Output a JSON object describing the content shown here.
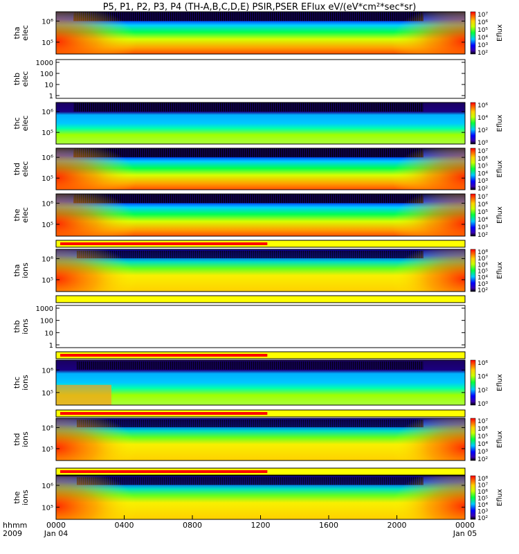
{
  "chart_data": {
    "type": "heatmap",
    "title": "P5, P1, P2, P3, P4 (TH-A,B,C,D,E) PSIR,PSER EFlux eV/(eV*cm²*sec*sr)",
    "colorbar_label": "Eflux",
    "x_axis": {
      "corner_label_1": "hhmm",
      "corner_label_2": "2009",
      "tick_labels": [
        "0000",
        "0400",
        "0800",
        "1200",
        "1600",
        "2000",
        "0000"
      ],
      "date_labels": [
        "Jan 04",
        "Jan 05"
      ],
      "range_hours": [
        0,
        24
      ]
    },
    "panels": [
      {
        "name": "tha-elec",
        "ylabel_1": "tha",
        "ylabel_2": "elec",
        "y_ticks": [
          "10⁶",
          "10⁵"
        ],
        "cbar_ticks": [
          "10⁷",
          "10⁶",
          "10⁵",
          "10⁴",
          "10³",
          "10²"
        ],
        "colorbar": true,
        "kind": "elec"
      },
      {
        "name": "thb-elec",
        "ylabel_1": "thb",
        "ylabel_2": "elec",
        "y_ticks": [
          "1000",
          "100",
          "10",
          "1"
        ],
        "colorbar": false,
        "kind": "empty"
      },
      {
        "name": "thc-elec",
        "ylabel_1": "thc",
        "ylabel_2": "elec",
        "y_ticks": [
          "10⁶",
          "10⁵"
        ],
        "cbar_ticks": [
          "10⁶",
          "10⁴",
          "10²",
          "10⁰"
        ],
        "colorbar": true,
        "kind": "thc_elec"
      },
      {
        "name": "thd-elec",
        "ylabel_1": "thd",
        "ylabel_2": "elec",
        "y_ticks": [
          "10⁶",
          "10⁵"
        ],
        "cbar_ticks": [
          "10⁷",
          "10⁶",
          "10⁵",
          "10⁴",
          "10³",
          "10²"
        ],
        "colorbar": true,
        "kind": "elec"
      },
      {
        "name": "the-elec",
        "ylabel_1": "the",
        "ylabel_2": "elec",
        "y_ticks": [
          "10⁶",
          "10⁵"
        ],
        "cbar_ticks": [
          "10⁷",
          "10⁶",
          "10⁵",
          "10⁴",
          "10³",
          "10²"
        ],
        "colorbar": true,
        "kind": "elec"
      },
      {
        "name": "tha-ions",
        "ylabel_1": "tha",
        "ylabel_2": "ions",
        "y_ticks": [
          "10⁶",
          "10⁵"
        ],
        "cbar_ticks": [
          "10⁸",
          "10⁷",
          "10⁶",
          "10⁵",
          "10⁴",
          "10³",
          "10²"
        ],
        "colorbar": true,
        "kind": "ions"
      },
      {
        "name": "thb-ions",
        "ylabel_1": "thb",
        "ylabel_2": "ions",
        "y_ticks": [
          "1000",
          "100",
          "10",
          "1"
        ],
        "colorbar": false,
        "kind": "empty"
      },
      {
        "name": "thc-ions",
        "ylabel_1": "thc",
        "ylabel_2": "ions",
        "y_ticks": [
          "10⁶",
          "10⁵"
        ],
        "cbar_ticks": [
          "10⁶",
          "10⁴",
          "10²",
          "10⁰"
        ],
        "colorbar": true,
        "kind": "thc_ions"
      },
      {
        "name": "thd-ions",
        "ylabel_1": "thd",
        "ylabel_2": "ions",
        "y_ticks": [
          "10⁶",
          "10⁵"
        ],
        "cbar_ticks": [
          "10⁷",
          "10⁶",
          "10⁵",
          "10⁴",
          "10³",
          "10²"
        ],
        "colorbar": true,
        "kind": "ions"
      },
      {
        "name": "the-ions",
        "ylabel_1": "the",
        "ylabel_2": "ions",
        "y_ticks": [
          "10⁶",
          "10⁵"
        ],
        "cbar_ticks": [
          "10⁸",
          "10⁷",
          "10⁶",
          "10⁵",
          "10⁴",
          "10³",
          "10²"
        ],
        "colorbar": true,
        "kind": "ions"
      }
    ],
    "mode_bars": [
      {
        "name": "tha-mode-bar",
        "red_end_hour": 12.4
      },
      {
        "name": "thb-mode-bar",
        "red_end_hour": 0
      },
      {
        "name": "thc-mode-bar",
        "red_end_hour": 12.4
      },
      {
        "name": "thd-mode-bar",
        "red_end_hour": 12.4
      },
      {
        "name": "the-mode-bar",
        "red_end_hour": 12.4
      }
    ],
    "colors": {
      "bar_red": "#ff0000",
      "bar_yellow": "#ffff00",
      "axis": "#000000"
    }
  }
}
